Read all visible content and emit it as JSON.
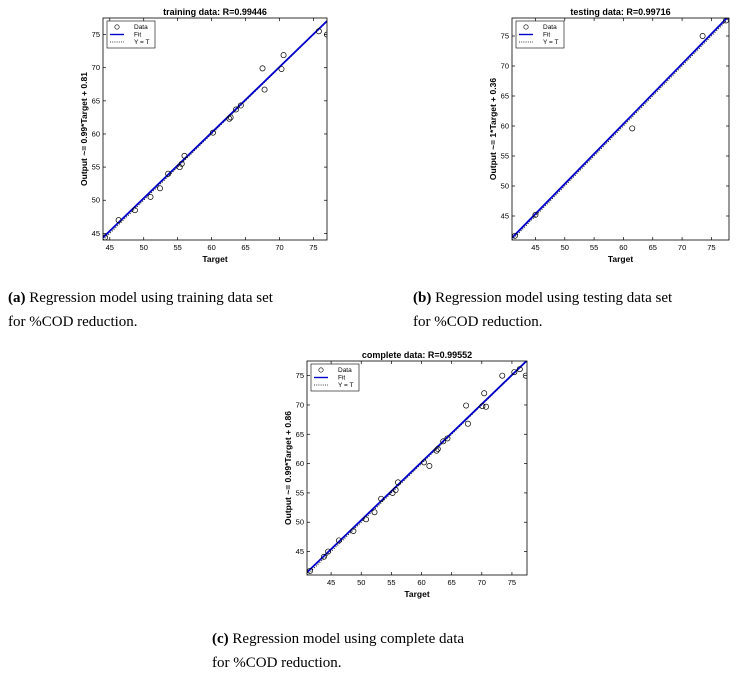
{
  "captions": [
    {
      "tag": "(a)",
      "line1": " Regression model using training data set",
      "line2": "for %COD reduction."
    },
    {
      "tag": "(b)",
      "line1": " Regression model using testing data set",
      "line2": "for %COD reduction."
    },
    {
      "tag": "(c)",
      "line1": " Regression model using complete data",
      "line2": "for %COD reduction."
    }
  ],
  "colors": {
    "fit": "#0000cc",
    "data": "#000000",
    "yt": "#000000"
  },
  "chart_data": [
    {
      "type": "scatter",
      "title": "training data: R=0.99446",
      "xlabel": "Target",
      "ylabel": "Output ~= 0.99*Target + 0.81",
      "xlim": [
        44,
        77
      ],
      "ylim": [
        44,
        77.5
      ],
      "xticks": [
        45,
        50,
        55,
        60,
        65,
        70,
        75
      ],
      "yticks": [
        45,
        50,
        55,
        60,
        65,
        70,
        75
      ],
      "legend": {
        "position": "top-left",
        "entries": [
          "Data",
          "Fit",
          "Y = T"
        ]
      },
      "fit": {
        "slope": 0.99,
        "intercept": 0.81
      },
      "series": [
        {
          "name": "Data",
          "x": [
            44.3,
            46.3,
            48.7,
            51.0,
            52.4,
            53.6,
            55.3,
            55.6,
            56.0,
            60.2,
            62.6,
            62.8,
            63.6,
            64.3,
            67.5,
            67.8,
            70.3,
            70.6,
            75.8,
            77.0
          ],
          "y": [
            44.4,
            47.0,
            48.5,
            50.5,
            51.8,
            54.0,
            55.0,
            55.5,
            56.7,
            60.2,
            62.3,
            62.5,
            63.7,
            64.3,
            69.9,
            66.7,
            69.8,
            71.9,
            75.5,
            75.0
          ]
        }
      ]
    },
    {
      "type": "scatter",
      "title": "testing data: R=0.99716",
      "xlabel": "Target",
      "ylabel": "Output ~= 1*Target + 0.36",
      "xlim": [
        41,
        78
      ],
      "ylim": [
        41,
        78
      ],
      "xticks": [
        45,
        50,
        55,
        60,
        65,
        70,
        75
      ],
      "yticks": [
        45,
        50,
        55,
        60,
        65,
        70,
        75
      ],
      "legend": {
        "position": "top-left",
        "entries": [
          "Data",
          "Fit",
          "Y = T"
        ]
      },
      "fit": {
        "slope": 1.0,
        "intercept": 0.36
      },
      "series": [
        {
          "name": "Data",
          "x": [
            41.5,
            45.0,
            61.5,
            73.5,
            77.5
          ],
          "y": [
            41.7,
            45.2,
            59.6,
            75.0,
            77.6
          ]
        }
      ]
    },
    {
      "type": "scatter",
      "title": "complete data: R=0.99552",
      "xlabel": "Target",
      "ylabel": "Output ~= 0.99*Target + 0.86",
      "xlim": [
        41,
        77.5
      ],
      "ylim": [
        41,
        77.5
      ],
      "xticks": [
        45,
        50,
        55,
        60,
        65,
        70,
        75
      ],
      "yticks": [
        45,
        50,
        55,
        60,
        65,
        70,
        75
      ],
      "legend": {
        "position": "top-left",
        "entries": [
          "Data",
          "Fit",
          "Y = T"
        ]
      },
      "fit": {
        "slope": 0.99,
        "intercept": 0.86
      },
      "series": [
        {
          "name": "Data",
          "x": [
            41.5,
            43.8,
            44.5,
            46.3,
            48.7,
            50.8,
            52.2,
            53.3,
            55.2,
            55.7,
            56.1,
            60.4,
            61.3,
            62.5,
            62.7,
            63.6,
            64.3,
            67.4,
            67.7,
            70.1,
            70.4,
            70.7,
            73.4,
            75.4,
            76.3,
            77.3
          ],
          "y": [
            41.7,
            44.1,
            45.0,
            46.9,
            48.5,
            50.5,
            51.7,
            54.0,
            55.0,
            55.5,
            56.8,
            60.2,
            59.6,
            62.2,
            62.5,
            63.8,
            64.3,
            69.9,
            66.8,
            69.8,
            72.0,
            69.7,
            75.0,
            75.6,
            76.1,
            75.0
          ]
        }
      ]
    }
  ]
}
